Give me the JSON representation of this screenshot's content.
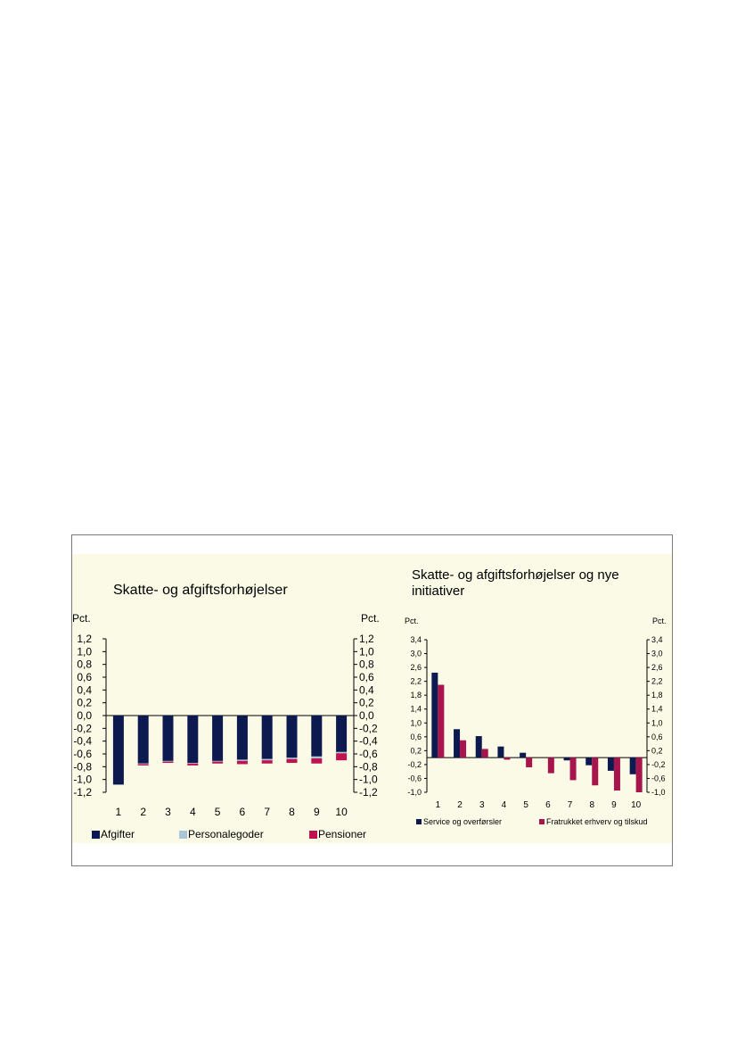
{
  "chart_data": [
    {
      "type": "bar",
      "stacked": true,
      "title": "Skatte- og afgiftsforhøjelser",
      "ylabel_left": "Pct.",
      "ylabel_right": "Pct.",
      "categories": [
        "1",
        "2",
        "3",
        "4",
        "5",
        "6",
        "7",
        "8",
        "9",
        "10"
      ],
      "ylim": [
        -1.2,
        1.2
      ],
      "yticks": [
        "1,2",
        "1,0",
        "0,8",
        "0,6",
        "0,4",
        "0,2",
        "0,0",
        "-0,2",
        "-0,4",
        "-0,6",
        "-0,8",
        "-1,0",
        "-1,2"
      ],
      "series": [
        {
          "name": "Afgifter",
          "color": "#0d1a4f",
          "values": [
            -1.08,
            -0.75,
            -0.71,
            -0.74,
            -0.71,
            -0.69,
            -0.68,
            -0.66,
            -0.64,
            -0.57
          ]
        },
        {
          "name": "Personalegoder",
          "color": "#a9c6d9",
          "values": [
            0.0,
            -0.01,
            -0.01,
            -0.01,
            -0.01,
            -0.02,
            -0.02,
            -0.02,
            -0.03,
            -0.02
          ]
        },
        {
          "name": "Pensioner",
          "color": "#c0124e",
          "values": [
            0.0,
            -0.02,
            -0.02,
            -0.03,
            -0.03,
            -0.05,
            -0.05,
            -0.06,
            -0.08,
            -0.11
          ]
        }
      ],
      "legend_position": "bottom",
      "grid": false
    },
    {
      "type": "bar",
      "title": "Skatte- og afgiftsforhøjelser og nye initiativer",
      "ylabel_left": "Pct.",
      "ylabel_right": "Pct.",
      "categories": [
        "1",
        "2",
        "3",
        "4",
        "5",
        "6",
        "7",
        "8",
        "9",
        "10"
      ],
      "ylim": [
        -1.0,
        3.4
      ],
      "yticks": [
        "3,4",
        "3,0",
        "2,6",
        "2,2",
        "1,8",
        "1,4",
        "1,0",
        "0,6",
        "0,2",
        "-0,2",
        "-0,6",
        "-1,0"
      ],
      "series": [
        {
          "name": "Service og overførsler",
          "color": "#0d1a4f",
          "values": [
            2.45,
            0.82,
            0.62,
            0.32,
            0.14,
            0.0,
            -0.08,
            -0.22,
            -0.38,
            -0.48
          ]
        },
        {
          "name": "Fratrukket erhverv og tilskud",
          "color": "#a8144c",
          "values": [
            2.1,
            0.5,
            0.25,
            -0.06,
            -0.28,
            -0.45,
            -0.65,
            -0.8,
            -0.95,
            -1.0
          ]
        }
      ],
      "legend_position": "bottom",
      "grid": false
    }
  ]
}
